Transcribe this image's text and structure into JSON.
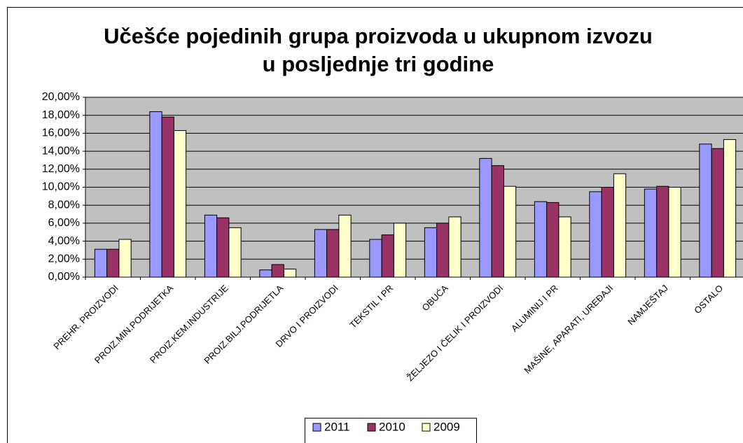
{
  "chart_data": {
    "type": "bar",
    "title": "Učešće pojedinih grupa proizvoda u ukupnom izvozu u posljednje tri godine",
    "categories": [
      "PREHR. PROIZVODI",
      "PROIZ.MIN.PODRIJETKA",
      "PROIZ.KEM.INDUSTRIJE",
      "PROIZ.BILJ.PODRIJETLA",
      "DRVO I PROIZVODI",
      "TEKSTIL I PR",
      "OBUĆA",
      "ŽELJEZO I ČELIK I PROIZVODI",
      "ALUMINIJ I PR",
      "MAŠINE, APARATI, UREĐAJI",
      "NAMJEŠTAJ",
      "OSTALO"
    ],
    "series": [
      {
        "name": "2011",
        "color": "#9999ff",
        "values": [
          3.1,
          18.4,
          6.9,
          0.8,
          5.3,
          4.2,
          5.5,
          13.2,
          8.4,
          9.5,
          9.8,
          14.8
        ]
      },
      {
        "name": "2010",
        "color": "#993366",
        "values": [
          3.1,
          17.8,
          6.6,
          1.4,
          5.3,
          4.7,
          6.0,
          12.4,
          8.3,
          10.0,
          10.1,
          14.3
        ]
      },
      {
        "name": "2009",
        "color": "#ffffcc",
        "values": [
          4.2,
          16.3,
          5.5,
          0.9,
          6.9,
          6.0,
          6.7,
          10.1,
          6.7,
          11.5,
          10.0,
          15.3
        ]
      }
    ],
    "ylim": [
      0,
      20
    ],
    "yticks": [
      {
        "value": 0,
        "label": "0,00%"
      },
      {
        "value": 2,
        "label": "2,00%"
      },
      {
        "value": 4,
        "label": "4,00%"
      },
      {
        "value": 6,
        "label": "6,00%"
      },
      {
        "value": 8,
        "label": "8,00%"
      },
      {
        "value": 10,
        "label": "10,00%"
      },
      {
        "value": 12,
        "label": "12,00%"
      },
      {
        "value": 14,
        "label": "14,00%"
      },
      {
        "value": 16,
        "label": "16,00%"
      },
      {
        "value": 18,
        "label": "18,00%"
      },
      {
        "value": 20,
        "label": "20,00%"
      }
    ],
    "grid": true,
    "legend": "bottom",
    "plot_background": "#c0c0c0"
  }
}
